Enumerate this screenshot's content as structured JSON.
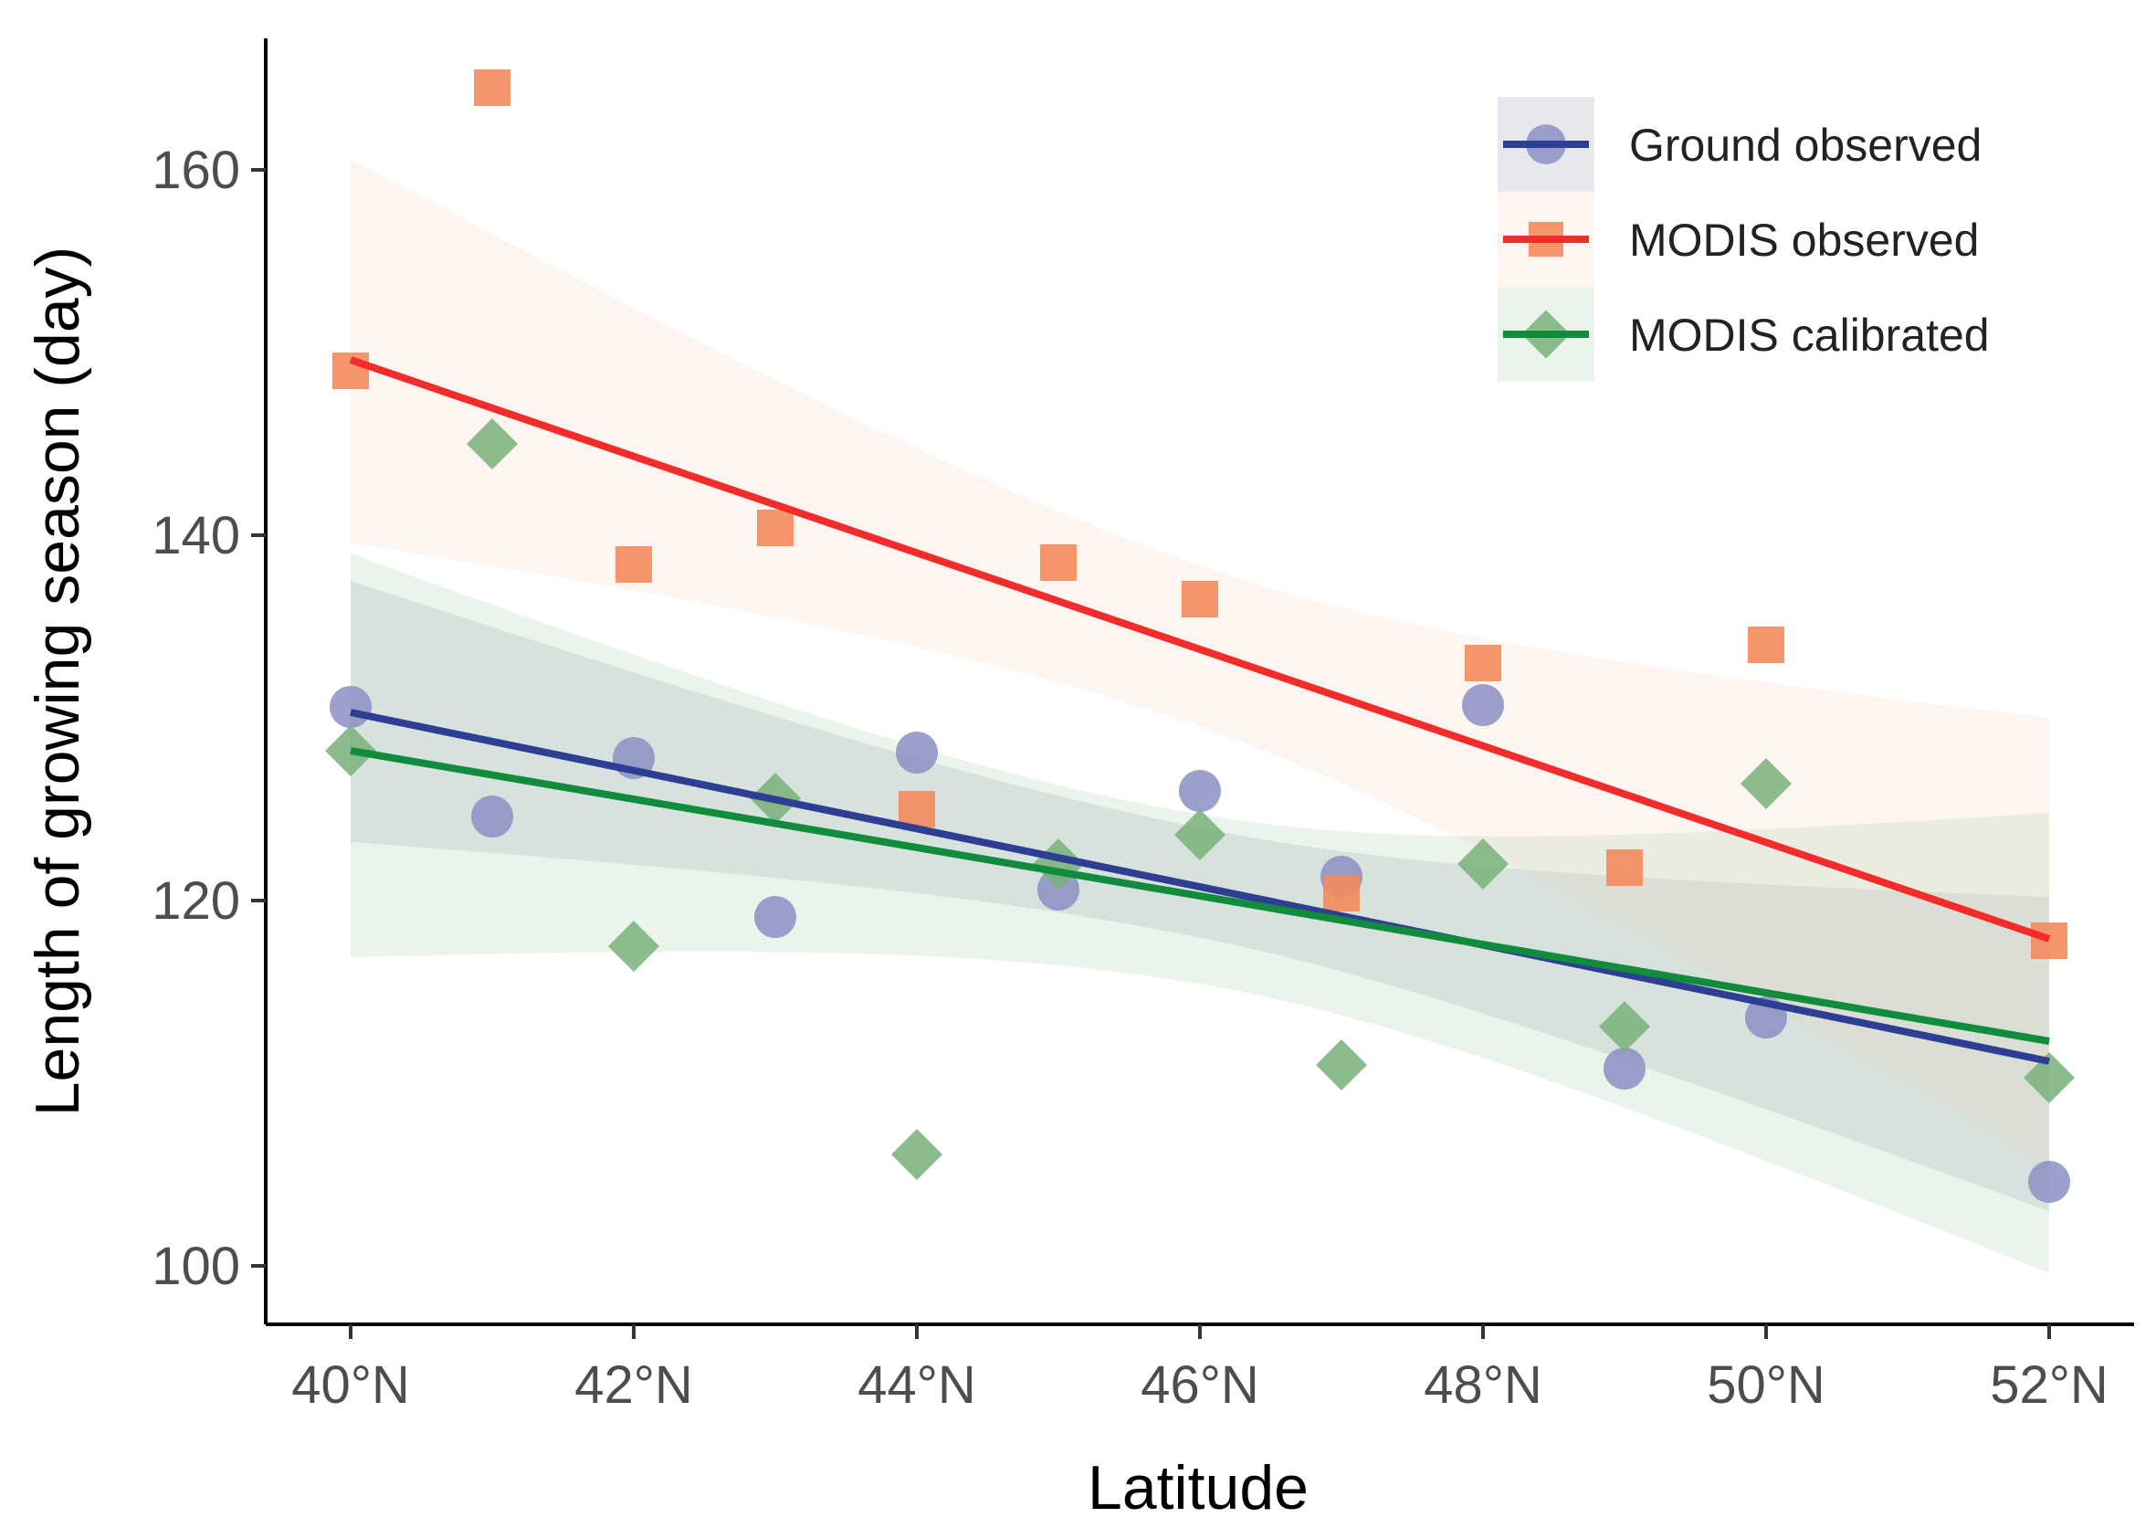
{
  "chart_data": {
    "type": "scatter",
    "xlabel": "Latitude",
    "ylabel": "Length of growing season (day)",
    "x_tick_labels": [
      "40°N",
      "42°N",
      "44°N",
      "46°N",
      "48°N",
      "50°N",
      "52°N"
    ],
    "x_ticks": [
      40,
      42,
      44,
      46,
      48,
      50,
      52
    ],
    "y_ticks": [
      100,
      120,
      140,
      160
    ],
    "xlim": [
      39.4,
      52.6
    ],
    "ylim": [
      96.8,
      167.2
    ],
    "grid": false,
    "legend_position": "top-right",
    "x": [
      40,
      41,
      42,
      43,
      44,
      45,
      46,
      47,
      48,
      49,
      50,
      52
    ],
    "series": [
      {
        "name": "Ground observed",
        "marker": "circle",
        "point_color": "#8b8fc4",
        "line_color": "#2e3f93",
        "band_color": "#8f97b3",
        "values": [
          130.6,
          124.6,
          127.8,
          119.1,
          128.1,
          120.6,
          126.0,
          121.3,
          130.7,
          110.8,
          113.6,
          104.6
        ],
        "fit": [
          130.3,
          111.2
        ],
        "ci_upper": [
          137.5,
          120.2
        ],
        "ci_lower": [
          123.2,
          103.0
        ]
      },
      {
        "name": "MODIS observed",
        "marker": "square",
        "point_color": "#f58a5c",
        "line_color": "#f22b2b",
        "band_color": "#fbd3bf",
        "values": [
          149.0,
          164.5,
          138.4,
          140.4,
          125.0,
          138.5,
          136.5,
          120.4,
          133.0,
          121.8,
          134.0,
          117.8
        ],
        "fit": [
          149.6,
          117.9
        ],
        "ci_upper": [
          160.6,
          130.0
        ],
        "ci_lower": [
          139.6,
          105.5
        ]
      },
      {
        "name": "MODIS calibrated",
        "marker": "diamond",
        "point_color": "#78b07a",
        "line_color": "#118c3c",
        "band_color": "#a3cba6",
        "values": [
          128.2,
          145.0,
          117.5,
          125.6,
          106.1,
          122.0,
          123.6,
          111.0,
          122.0,
          113.1,
          126.4,
          110.3
        ],
        "fit": [
          128.2,
          112.3
        ],
        "ci_upper": [
          139.0,
          124.8
        ],
        "ci_lower": [
          116.9,
          99.6
        ]
      }
    ]
  }
}
